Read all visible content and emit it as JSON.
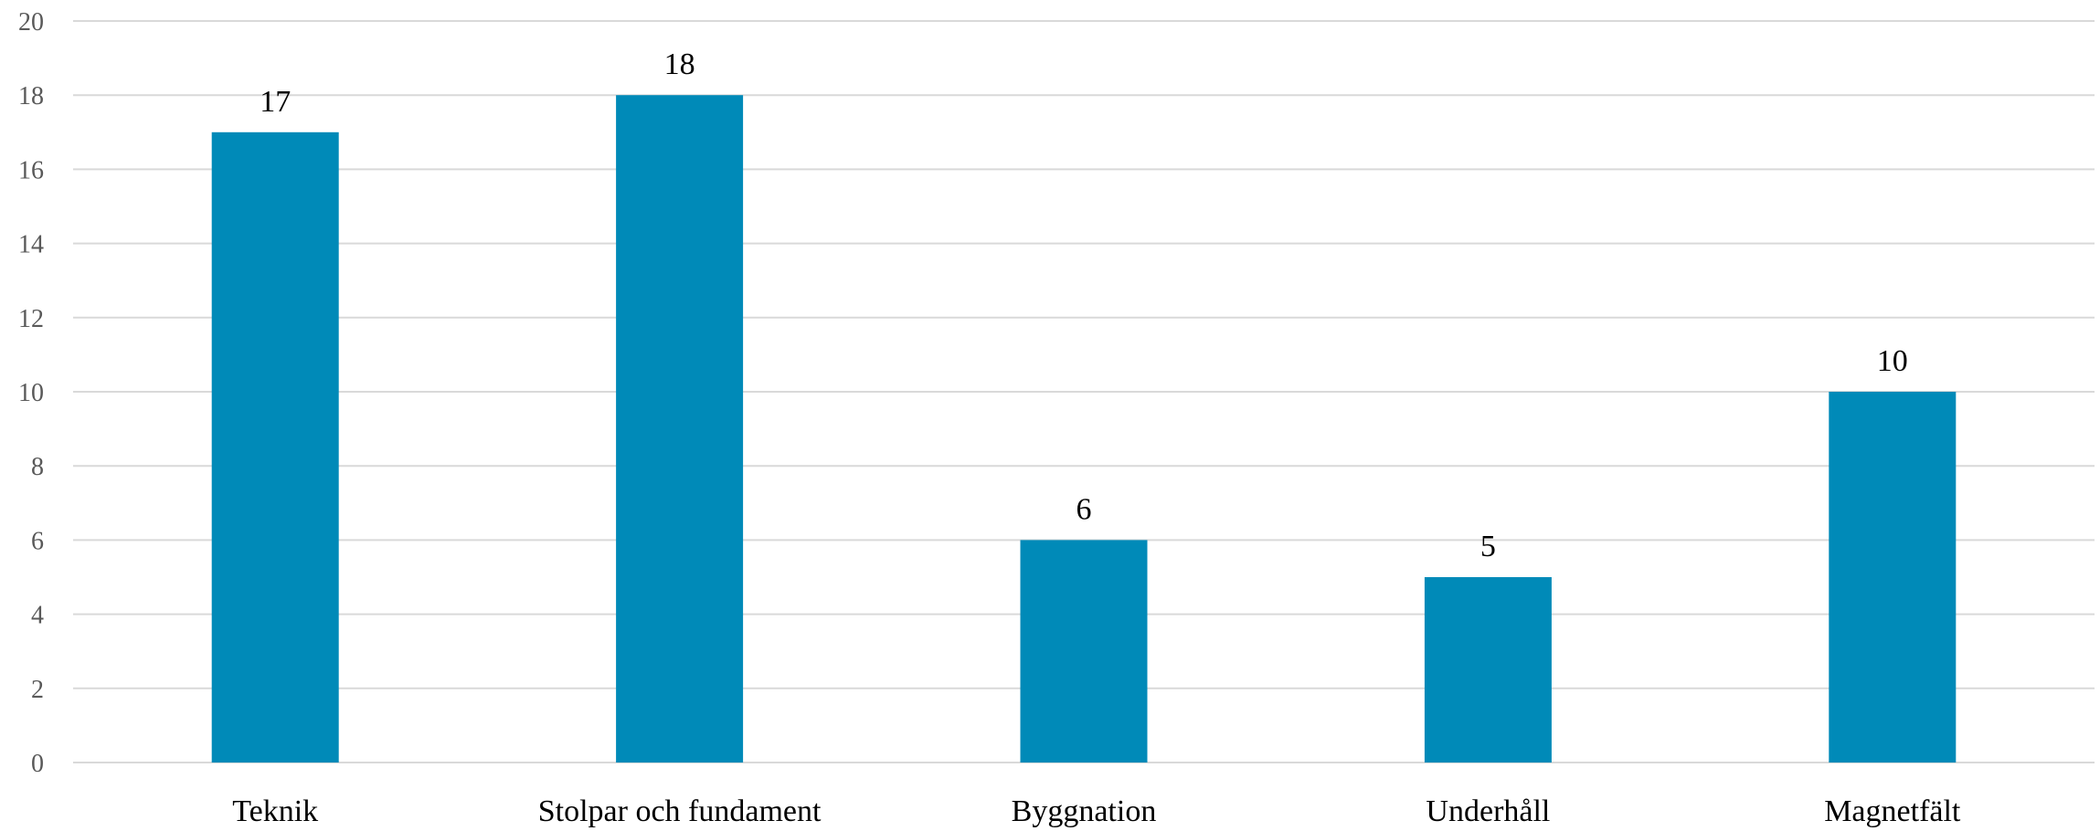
{
  "chart_data": {
    "type": "bar",
    "categories": [
      "Teknik",
      "Stolpar och fundament",
      "Byggnation",
      "Underhåll",
      "Magnetfält"
    ],
    "values": [
      17,
      18,
      6,
      5,
      10
    ],
    "title": "",
    "xlabel": "",
    "ylabel": "",
    "ylim": [
      0,
      20
    ],
    "yticks": [
      0,
      2,
      4,
      6,
      8,
      10,
      12,
      14,
      16,
      18,
      20
    ],
    "grid": true,
    "data_labels": true,
    "legend": "none",
    "colors": {
      "bar": "#008ab8",
      "grid": "#d9d9d9",
      "tick_text": "#595959",
      "label_text": "#000000"
    }
  }
}
